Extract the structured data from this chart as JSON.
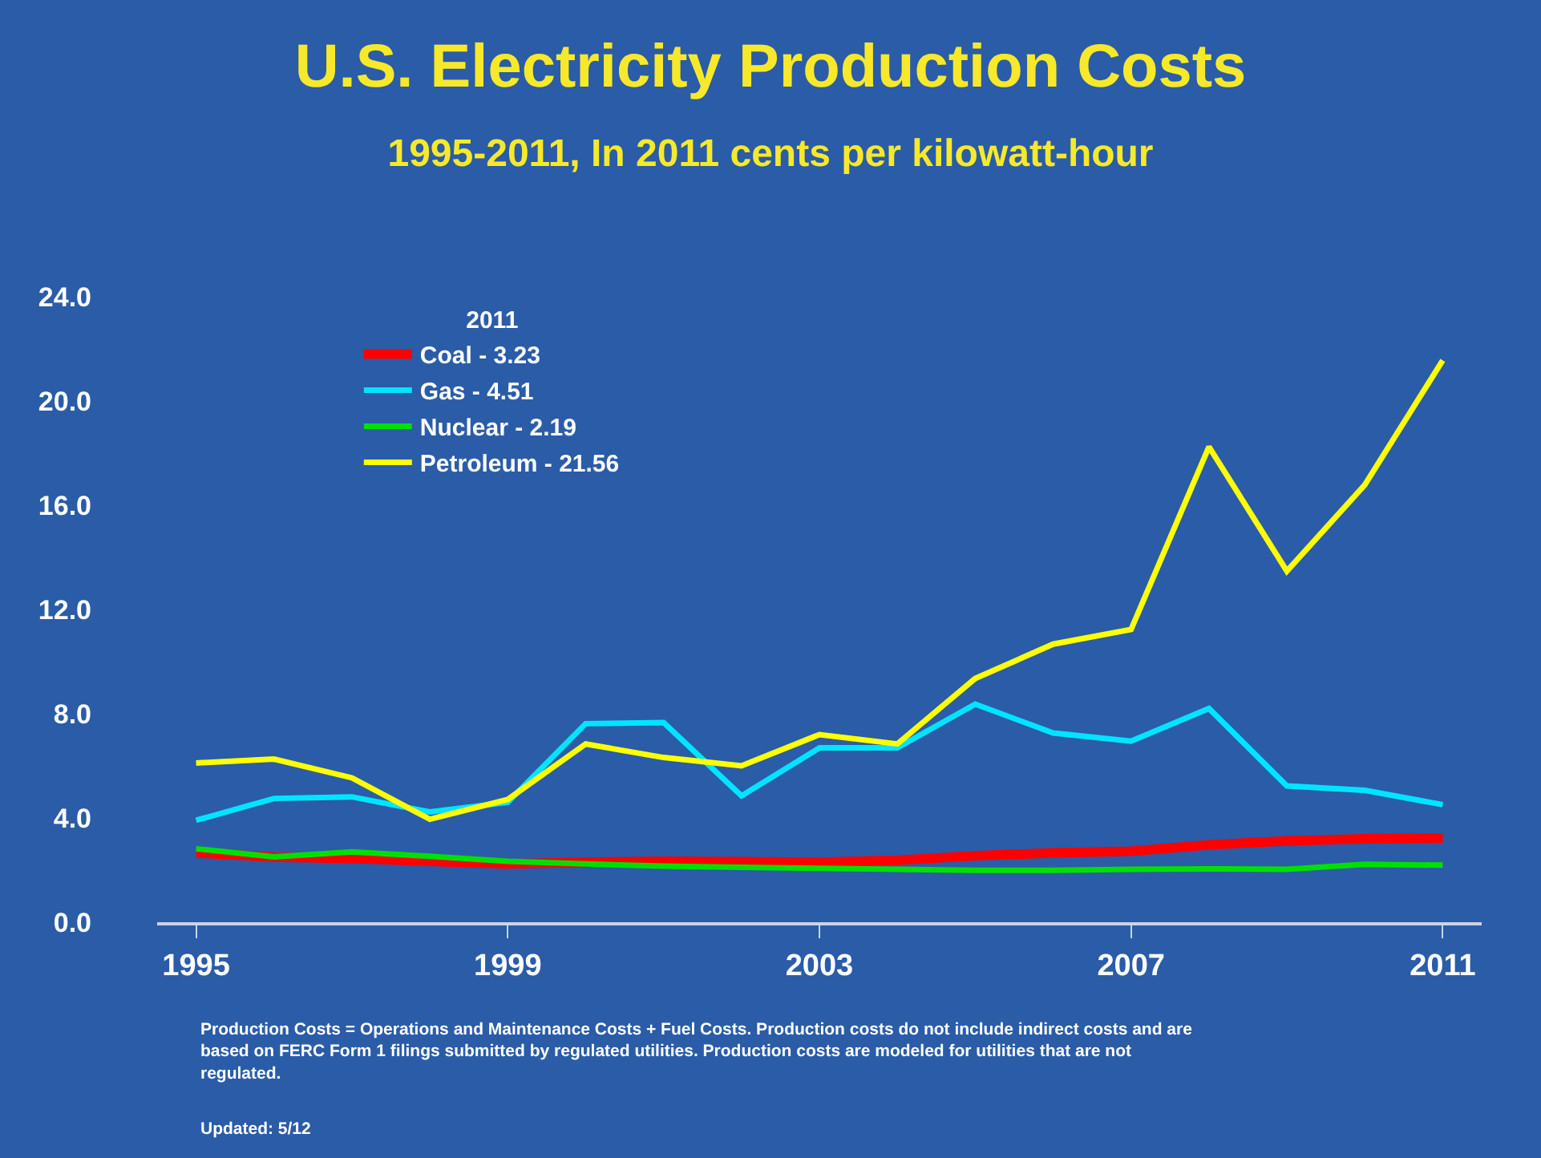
{
  "chart_data": {
    "type": "line",
    "title": "U.S. Electricity Production Costs",
    "subtitle": "1995-2011, In 2011 cents per kilowatt-hour",
    "x": [
      1995,
      1996,
      1997,
      1998,
      1999,
      2000,
      2001,
      2002,
      2003,
      2004,
      2005,
      2006,
      2007,
      2008,
      2009,
      2010,
      2011
    ],
    "legend_title": "2011",
    "series": [
      {
        "name": "Coal - 3.23",
        "color": "#ff0000",
        "values": [
          2.66,
          2.5,
          2.45,
          2.34,
          2.24,
          2.3,
          2.34,
          2.32,
          2.3,
          2.38,
          2.55,
          2.66,
          2.72,
          2.97,
          3.12,
          3.2,
          3.23
        ]
      },
      {
        "name": "Gas - 4.51",
        "color": "#00e5ff",
        "values": [
          3.91,
          4.75,
          4.81,
          4.23,
          4.6,
          7.62,
          7.66,
          4.85,
          6.69,
          6.69,
          8.37,
          7.26,
          6.95,
          8.2,
          5.23,
          5.06,
          4.51
        ]
      },
      {
        "name": "Nuclear - 2.19",
        "color": "#00e000",
        "values": [
          2.82,
          2.51,
          2.7,
          2.53,
          2.34,
          2.24,
          2.15,
          2.11,
          2.07,
          2.03,
          1.99,
          1.99,
          2.03,
          2.05,
          2.03,
          2.22,
          2.19
        ]
      },
      {
        "name": "Petroleum - 21.56",
        "color": "#ffff00",
        "values": [
          6.11,
          6.26,
          5.54,
          3.95,
          4.71,
          6.84,
          6.32,
          6.0,
          7.2,
          6.84,
          9.35,
          10.67,
          11.23,
          18.24,
          13.47,
          16.78,
          21.56
        ]
      }
    ],
    "xlim": [
      1994.5,
      2011.5
    ],
    "xticks": [
      1995,
      1999,
      2003,
      2007,
      2011
    ],
    "ylim": [
      0,
      24
    ],
    "yticks": [
      {
        "value": 0,
        "label": "0.0"
      },
      {
        "value": 4,
        "label": "4.0"
      },
      {
        "value": 8,
        "label": "8.0"
      },
      {
        "value": 12,
        "label": "12.0"
      },
      {
        "value": 16,
        "label": "16.0"
      },
      {
        "value": 20,
        "label": "20.0"
      },
      {
        "value": 24,
        "label": "24.0"
      }
    ],
    "grid": false,
    "legend": "top left",
    "marker": "none",
    "line_style": "solid",
    "annotations": [
      "Production Costs = Operations and Maintenance Costs + Fuel Costs. Production costs do not include indirect costs and are based on FERC Form 1 filings submitted by regulated utilities. Production costs are modeled for utilities that are not regulated.",
      "Updated: 5/12"
    ]
  }
}
